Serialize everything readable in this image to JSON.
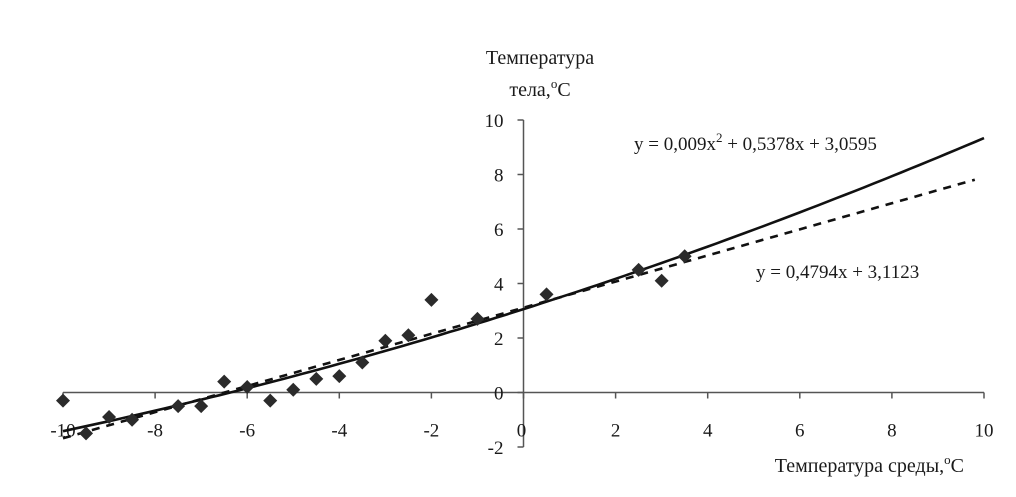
{
  "chart_data": {
    "type": "scatter",
    "title": "",
    "ylabel_line1": "Температура",
    "ylabel_line2": "тела,",
    "ylabel_unit": "C",
    "xlabel_text": "Температура среды,",
    "xlabel_unit": "C",
    "degree_sup": "o",
    "xlim": [
      -10,
      10
    ],
    "ylim": [
      -2,
      10
    ],
    "x_ticks": [
      "-10",
      "-8",
      "-6",
      "-4",
      "-2",
      "0",
      "2",
      "4",
      "6",
      "8",
      "10"
    ],
    "y_ticks": [
      "-2",
      "0",
      "2",
      "4",
      "6",
      "8",
      "10"
    ],
    "grid": false,
    "legend": "none",
    "series": [
      {
        "marker": "diamond",
        "color": "#2b2b2b",
        "x": [
          -10,
          -9.5,
          -9,
          -8.5,
          -7.5,
          -7,
          -6.5,
          -6,
          -5.5,
          -5,
          -4.5,
          -4,
          -3.5,
          -3,
          -2.5,
          -2,
          -1,
          0.5,
          2.5,
          3,
          3.5
        ],
        "y": [
          -0.3,
          -1.5,
          -0.9,
          -1.0,
          -0.5,
          -0.5,
          0.4,
          0.2,
          -0.3,
          0.1,
          0.5,
          0.6,
          1.1,
          1.9,
          2.1,
          3.4,
          2.7,
          3.6,
          4.5,
          4.1,
          5.0
        ]
      }
    ],
    "trendlines": [
      {
        "style": "solid",
        "fit": "poly2",
        "coefficients": [
          0.009,
          0.5378,
          3.0595
        ],
        "equation_main": "y = 0,009x",
        "equation_sup": "2",
        "equation_rest": " + 0,5378x + 3,0595"
      },
      {
        "style": "dashed",
        "fit": "linear",
        "coefficients": [
          0,
          0.4794,
          3.1123
        ],
        "x_end": 9.8,
        "equation_main": "y = 0,4794x + 3,1123"
      }
    ]
  }
}
